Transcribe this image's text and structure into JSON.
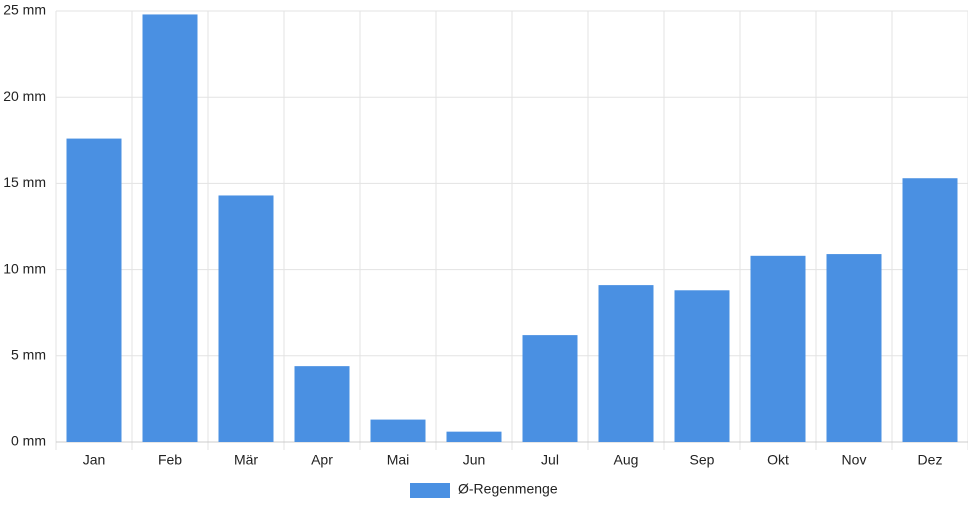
{
  "chart_data": {
    "type": "bar",
    "categories": [
      "Jan",
      "Feb",
      "Mär",
      "Apr",
      "Mai",
      "Jun",
      "Jul",
      "Aug",
      "Sep",
      "Okt",
      "Nov",
      "Dez"
    ],
    "series": [
      {
        "name": "Ø-Regenmenge",
        "color": "#4a90e2",
        "values": [
          17.6,
          24.8,
          14.3,
          4.4,
          1.3,
          0.6,
          6.2,
          9.1,
          8.8,
          10.8,
          10.9,
          15.3
        ]
      }
    ],
    "ylim": [
      0,
      25
    ],
    "yticks": [
      {
        "value": 0,
        "label": "0 mm"
      },
      {
        "value": 5,
        "label": "5 mm"
      },
      {
        "value": 10,
        "label": "10 mm"
      },
      {
        "value": 15,
        "label": "15 mm"
      },
      {
        "value": 20,
        "label": "20 mm"
      },
      {
        "value": 25,
        "label": "25 mm"
      }
    ],
    "grid": true,
    "legend": "bottom"
  }
}
